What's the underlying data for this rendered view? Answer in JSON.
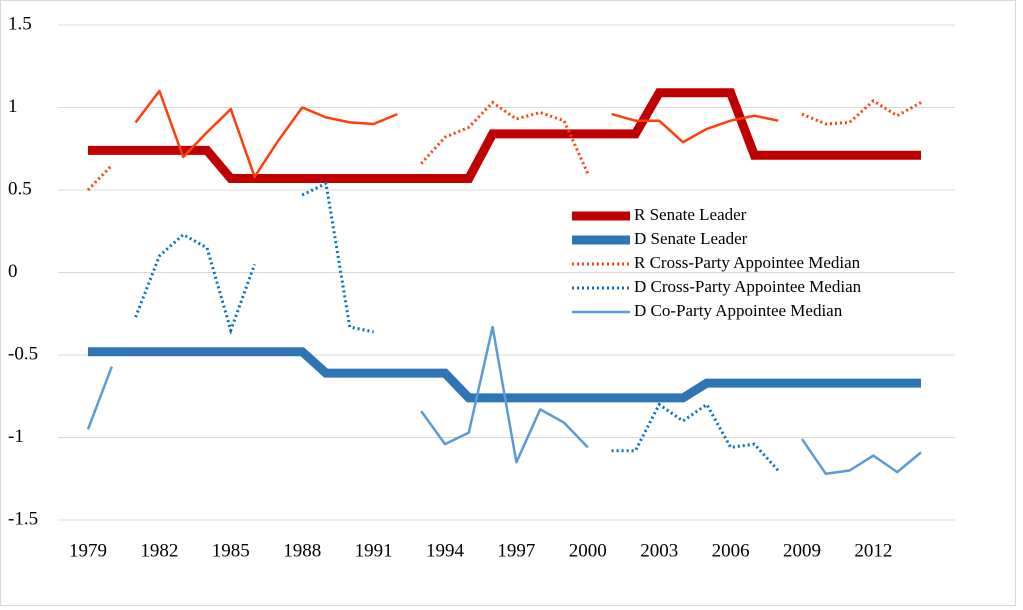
{
  "chart_data": {
    "type": "line",
    "categories": [
      "1979",
      null,
      null,
      "1982",
      null,
      null,
      "1985",
      null,
      null,
      "1988",
      null,
      null,
      "1991",
      null,
      null,
      "1994",
      null,
      null,
      "1997",
      null,
      null,
      "2000",
      null,
      null,
      "2003",
      null,
      null,
      "2006",
      null,
      null,
      "2009",
      null,
      null,
      "2012",
      null,
      null
    ],
    "ylim": [
      -1.5,
      1.5
    ],
    "yticks": [
      -1.5,
      -1,
      -0.5,
      0,
      0.5,
      1,
      1.5
    ],
    "grid": true,
    "legend": "right",
    "series": [
      {
        "name": "R Senate Leader",
        "color": "#c00000",
        "style": "thick",
        "values": [
          0.74,
          0.74,
          0.74,
          0.74,
          0.74,
          0.74,
          0.57,
          0.57,
          0.57,
          0.57,
          0.57,
          0.57,
          0.57,
          0.57,
          0.57,
          0.57,
          0.57,
          0.84,
          0.84,
          0.84,
          0.84,
          0.84,
          0.84,
          0.84,
          1.09,
          1.09,
          1.09,
          1.09,
          0.71,
          0.71,
          0.71,
          0.71,
          0.71,
          0.71,
          0.71,
          0.71
        ]
      },
      {
        "name": "D Senate Leader",
        "color": "#2e75b6",
        "style": "thick",
        "values": [
          -0.48,
          -0.48,
          -0.48,
          -0.48,
          -0.48,
          -0.48,
          -0.48,
          -0.48,
          -0.48,
          -0.48,
          -0.61,
          -0.61,
          -0.61,
          -0.61,
          -0.61,
          -0.61,
          -0.76,
          -0.76,
          -0.76,
          -0.76,
          -0.76,
          -0.76,
          -0.76,
          -0.76,
          -0.76,
          -0.76,
          -0.67,
          -0.67,
          -0.67,
          -0.67,
          -0.67,
          -0.67,
          -0.67,
          -0.67,
          -0.67,
          -0.67
        ]
      },
      {
        "name": "R Cross-Party Appointee Median",
        "color": "#ff3d0d",
        "style": "dotted",
        "values": [
          0.5,
          0.65,
          null,
          null,
          null,
          null,
          null,
          null,
          null,
          null,
          null,
          null,
          null,
          null,
          0.66,
          0.82,
          0.88,
          1.03,
          0.93,
          0.97,
          0.92,
          0.6,
          null,
          null,
          null,
          null,
          null,
          null,
          null,
          null,
          0.96,
          0.9,
          0.91,
          1.04,
          0.95,
          1.03
        ]
      },
      {
        "name": "D Cross-Party Appointee Median",
        "color": "#0070c0",
        "style": "dotted",
        "values": [
          null,
          null,
          -0.27,
          0.1,
          0.23,
          0.15,
          -0.35,
          0.05,
          null,
          0.47,
          0.54,
          -0.33,
          -0.36,
          null,
          null,
          null,
          null,
          null,
          null,
          null,
          null,
          null,
          -1.08,
          -1.08,
          -0.8,
          -0.9,
          -0.8,
          -1.06,
          -1.04,
          -1.2,
          null,
          null,
          null,
          null,
          null,
          null
        ]
      },
      {
        "name": "D Co-Party Appointee Median",
        "color": "#5b9bd5",
        "style": "solid",
        "values": [
          -0.95,
          -0.57,
          null,
          null,
          null,
          null,
          null,
          null,
          null,
          null,
          null,
          null,
          null,
          null,
          -0.84,
          -1.04,
          -0.97,
          -0.33,
          -1.15,
          -0.83,
          -0.91,
          -1.06,
          null,
          null,
          null,
          null,
          null,
          null,
          null,
          null,
          -1.01,
          -1.22,
          -1.2,
          -1.11,
          -1.21,
          -1.09
        ]
      },
      {
        "color": "#ff3d0d",
        "style": "solid",
        "values": [
          null,
          null,
          0.91,
          1.1,
          0.7,
          0.85,
          0.99,
          0.58,
          0.8,
          1.0,
          0.94,
          0.91,
          0.9,
          0.96,
          null,
          null,
          null,
          null,
          null,
          null,
          null,
          null,
          0.96,
          0.92,
          0.92,
          0.79,
          0.87,
          0.92,
          0.95,
          0.92,
          null,
          null,
          null,
          null,
          null,
          null
        ]
      }
    ]
  }
}
